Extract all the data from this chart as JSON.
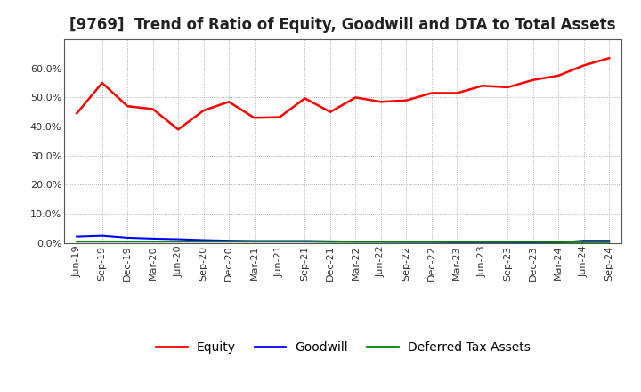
{
  "title": "[9769]  Trend of Ratio of Equity, Goodwill and DTA to Total Assets",
  "x_labels": [
    "Jun-19",
    "Sep-19",
    "Dec-19",
    "Mar-20",
    "Jun-20",
    "Sep-20",
    "Dec-20",
    "Mar-21",
    "Jun-21",
    "Sep-21",
    "Dec-21",
    "Mar-22",
    "Jun-22",
    "Sep-22",
    "Dec-22",
    "Mar-23",
    "Jun-23",
    "Sep-23",
    "Dec-23",
    "Mar-24",
    "Jun-24",
    "Sep-24"
  ],
  "equity": [
    0.445,
    0.55,
    0.47,
    0.46,
    0.39,
    0.455,
    0.485,
    0.43,
    0.432,
    0.497,
    0.45,
    0.5,
    0.485,
    0.49,
    0.515,
    0.515,
    0.54,
    0.535,
    0.56,
    0.575,
    0.61,
    0.635
  ],
  "goodwill": [
    0.022,
    0.025,
    0.018,
    0.015,
    0.013,
    0.01,
    0.008,
    0.007,
    0.007,
    0.007,
    0.006,
    0.005,
    0.005,
    0.004,
    0.004,
    0.003,
    0.003,
    0.003,
    0.002,
    0.002,
    0.008,
    0.008
  ],
  "dta": [
    0.005,
    0.005,
    0.005,
    0.005,
    0.005,
    0.005,
    0.005,
    0.005,
    0.005,
    0.005,
    0.004,
    0.004,
    0.004,
    0.004,
    0.004,
    0.004,
    0.004,
    0.004,
    0.004,
    0.003,
    0.003,
    0.003
  ],
  "equity_color": "#ff0000",
  "goodwill_color": "#0000ff",
  "dta_color": "#008000",
  "bg_color": "#ffffff",
  "plot_bg_color": "#ffffff",
  "grid_color": "#999999",
  "ylim": [
    0.0,
    0.7
  ],
  "yticks": [
    0.0,
    0.1,
    0.2,
    0.3,
    0.4,
    0.5,
    0.6
  ],
  "legend_labels": [
    "Equity",
    "Goodwill",
    "Deferred Tax Assets"
  ],
  "title_fontsize": 12,
  "tick_fontsize": 8,
  "legend_fontsize": 10
}
